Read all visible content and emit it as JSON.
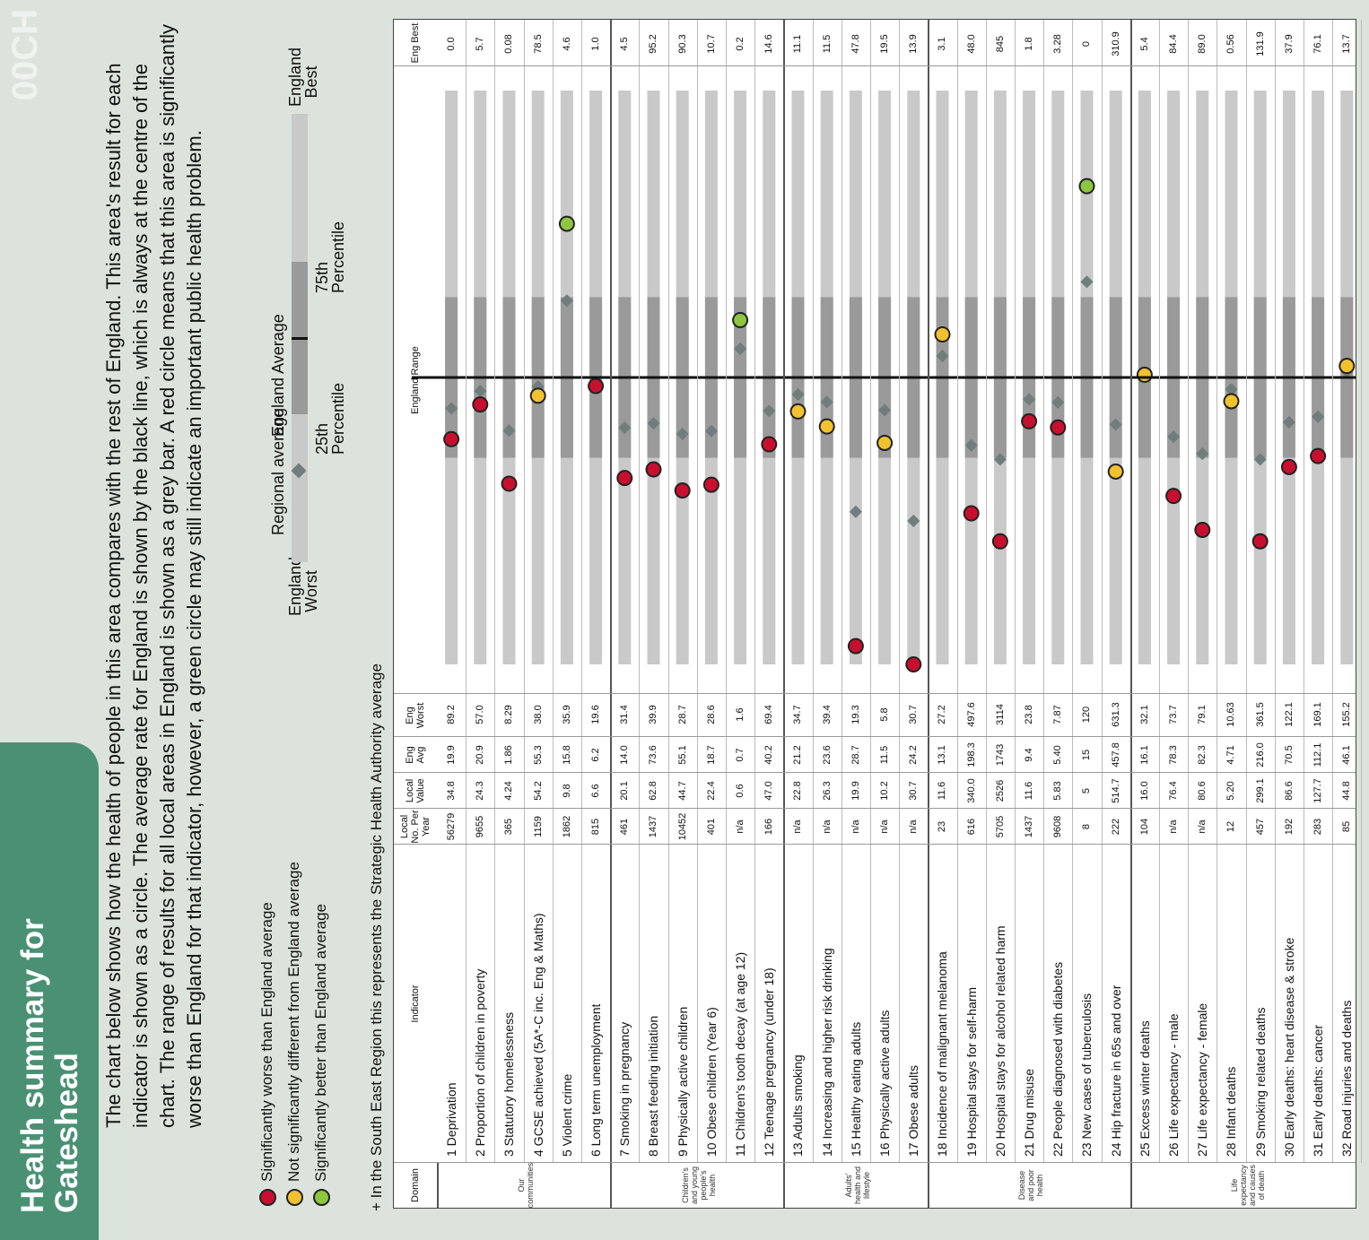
{
  "header": {
    "title_line1": "Health summary for",
    "title_line2": "Gateshead",
    "code": "00CH"
  },
  "intro_text": "The chart below shows how the health of people in this area compares with the rest of England. This area's result for each indicator is shown as a circle. The average rate for England is shown by the black line, which is always at the centre of the chart. The range of results for all local areas in England is shown as a grey bar. A red circle means that this area is significantly worse than England for that indicator, however, a green circle may still indicate an important public health problem.",
  "legend": {
    "items": [
      {
        "label": "Significantly worse than England average",
        "color": "#c8102e"
      },
      {
        "label": "Not significantly different from England average",
        "color": "#f2c12e"
      },
      {
        "label": "Significantly better than England average",
        "color": "#8dc63f"
      }
    ]
  },
  "key": {
    "england_worst": "England Worst",
    "regional_average": "Regional average",
    "percentile_25": "25th Percentile",
    "england_average": "England Average",
    "percentile_75": "75th Percentile",
    "england_best": "England Best"
  },
  "footnote": "+ In the South East Region this represents the Strategic Health Authority average",
  "columns": {
    "domain": "Domain",
    "indicator": "Indicator",
    "local_no": "Local No. Per Year",
    "local_value": "Local Value",
    "eng_avg": "Eng Avg",
    "eng_worst": "Eng Worst",
    "range": "England Range",
    "eng_best": "Eng Best"
  },
  "domains": [
    {
      "label": "Our communities",
      "rows": 6
    },
    {
      "label": "Children's and young people's health",
      "rows": 6
    },
    {
      "label": "Adults' health and lifestyle",
      "rows": 5
    },
    {
      "label": "Disease and poor health",
      "rows": 7
    },
    {
      "label": "Life expectancy and causes of death",
      "rows": 8
    }
  ],
  "chart_data": {
    "type": "table",
    "rows": [
      {
        "n": "1",
        "indicator": "Deprivation",
        "local_no": "56279",
        "local_value": "34.8",
        "eng_avg": "19.9",
        "eng_worst": "89.2",
        "eng_best": "0.0",
        "status": "worse"
      },
      {
        "n": "2",
        "indicator": "Proportion of children in poverty",
        "local_no": "9655",
        "local_value": "24.3",
        "eng_avg": "20.9",
        "eng_worst": "57.0",
        "eng_best": "5.7",
        "status": "worse"
      },
      {
        "n": "3",
        "indicator": "Statutory homelessness",
        "local_no": "365",
        "local_value": "4.24",
        "eng_avg": "1.86",
        "eng_worst": "8.29",
        "eng_best": "0.08",
        "status": "worse"
      },
      {
        "n": "4",
        "indicator": "GCSE achieved (5A*-C inc. Eng & Maths)",
        "local_no": "1159",
        "local_value": "54.2",
        "eng_avg": "55.3",
        "eng_worst": "38.0",
        "eng_best": "78.5",
        "status": "similar"
      },
      {
        "n": "5",
        "indicator": "Violent crime",
        "local_no": "1862",
        "local_value": "9.8",
        "eng_avg": "15.8",
        "eng_worst": "35.9",
        "eng_best": "4.6",
        "status": "better"
      },
      {
        "n": "6",
        "indicator": "Long term unemployment",
        "local_no": "815",
        "local_value": "6.6",
        "eng_avg": "6.2",
        "eng_worst": "19.6",
        "eng_best": "1.0",
        "status": "worse"
      },
      {
        "n": "7",
        "indicator": "Smoking in pregnancy",
        "local_no": "461",
        "local_value": "20.1",
        "eng_avg": "14.0",
        "eng_worst": "31.4",
        "eng_best": "4.5",
        "status": "worse"
      },
      {
        "n": "8",
        "indicator": "Breast feeding initiation",
        "local_no": "1437",
        "local_value": "62.8",
        "eng_avg": "73.6",
        "eng_worst": "39.9",
        "eng_best": "95.2",
        "status": "worse"
      },
      {
        "n": "9",
        "indicator": "Physically active children",
        "local_no": "10452",
        "local_value": "44.7",
        "eng_avg": "55.1",
        "eng_worst": "28.7",
        "eng_best": "90.3",
        "status": "worse"
      },
      {
        "n": "10",
        "indicator": "Obese children (Year 6)",
        "local_no": "401",
        "local_value": "22.4",
        "eng_avg": "18.7",
        "eng_worst": "28.6",
        "eng_best": "10.7",
        "status": "worse"
      },
      {
        "n": "11",
        "indicator": "Children's tooth decay (at age 12)",
        "local_no": "n/a",
        "local_value": "0.6",
        "eng_avg": "0.7",
        "eng_worst": "1.6",
        "eng_best": "0.2",
        "status": "better"
      },
      {
        "n": "12",
        "indicator": "Teenage pregnancy (under 18)",
        "local_no": "166",
        "local_value": "47.0",
        "eng_avg": "40.2",
        "eng_worst": "69.4",
        "eng_best": "14.6",
        "status": "worse"
      },
      {
        "n": "13",
        "indicator": "Adults smoking",
        "local_no": "n/a",
        "local_value": "22.8",
        "eng_avg": "21.2",
        "eng_worst": "34.7",
        "eng_best": "11.1",
        "status": "similar"
      },
      {
        "n": "14",
        "indicator": "Increasing and higher risk drinking",
        "local_no": "n/a",
        "local_value": "26.3",
        "eng_avg": "23.6",
        "eng_worst": "39.4",
        "eng_best": "11.5",
        "status": "similar"
      },
      {
        "n": "15",
        "indicator": "Healthy eating adults",
        "local_no": "n/a",
        "local_value": "19.9",
        "eng_avg": "28.7",
        "eng_worst": "19.3",
        "eng_best": "47.8",
        "status": "worse"
      },
      {
        "n": "16",
        "indicator": "Physically active adults",
        "local_no": "n/a",
        "local_value": "10.2",
        "eng_avg": "11.5",
        "eng_worst": "5.8",
        "eng_best": "19.5",
        "status": "similar"
      },
      {
        "n": "17",
        "indicator": "Obese adults",
        "local_no": "n/a",
        "local_value": "30.7",
        "eng_avg": "24.2",
        "eng_worst": "30.7",
        "eng_best": "13.9",
        "status": "worse"
      },
      {
        "n": "18",
        "indicator": "Incidence of malignant melanoma",
        "local_no": "23",
        "local_value": "11.6",
        "eng_avg": "13.1",
        "eng_worst": "27.2",
        "eng_best": "3.1",
        "status": "similar"
      },
      {
        "n": "19",
        "indicator": "Hospital stays for self-harm",
        "local_no": "616",
        "local_value": "340.0",
        "eng_avg": "198.3",
        "eng_worst": "497.6",
        "eng_best": "48.0",
        "status": "worse"
      },
      {
        "n": "20",
        "indicator": "Hospital stays for alcohol related harm",
        "local_no": "5705",
        "local_value": "2526",
        "eng_avg": "1743",
        "eng_worst": "3114",
        "eng_best": "845",
        "status": "worse"
      },
      {
        "n": "21",
        "indicator": "Drug misuse",
        "local_no": "1437",
        "local_value": "11.6",
        "eng_avg": "9.4",
        "eng_worst": "23.8",
        "eng_best": "1.8",
        "status": "worse"
      },
      {
        "n": "22",
        "indicator": "People diagnosed with diabetes",
        "local_no": "9608",
        "local_value": "5.83",
        "eng_avg": "5.40",
        "eng_worst": "7.87",
        "eng_best": "3.28",
        "status": "worse"
      },
      {
        "n": "23",
        "indicator": "New cases of tuberculosis",
        "local_no": "8",
        "local_value": "5",
        "eng_avg": "15",
        "eng_worst": "120",
        "eng_best": "0",
        "status": "better"
      },
      {
        "n": "24",
        "indicator": "Hip fracture in 65s and over",
        "local_no": "222",
        "local_value": "514.7",
        "eng_avg": "457.8",
        "eng_worst": "631.3",
        "eng_best": "310.9",
        "status": "similar"
      },
      {
        "n": "25",
        "indicator": "Excess winter deaths",
        "local_no": "104",
        "local_value": "16.0",
        "eng_avg": "16.1",
        "eng_worst": "32.1",
        "eng_best": "5.4",
        "status": "similar"
      },
      {
        "n": "26",
        "indicator": "Life expectancy - male",
        "local_no": "n/a",
        "local_value": "76.4",
        "eng_avg": "78.3",
        "eng_worst": "73.7",
        "eng_best": "84.4",
        "status": "worse"
      },
      {
        "n": "27",
        "indicator": "Life expectancy - female",
        "local_no": "n/a",
        "local_value": "80.6",
        "eng_avg": "82.3",
        "eng_worst": "79.1",
        "eng_best": "89.0",
        "status": "worse"
      },
      {
        "n": "28",
        "indicator": "Infant deaths",
        "local_no": "12",
        "local_value": "5.20",
        "eng_avg": "4.71",
        "eng_worst": "10.63",
        "eng_best": "0.56",
        "status": "similar"
      },
      {
        "n": "29",
        "indicator": "Smoking related deaths",
        "local_no": "457",
        "local_value": "299.1",
        "eng_avg": "216.0",
        "eng_worst": "361.5",
        "eng_best": "131.9",
        "status": "worse"
      },
      {
        "n": "30",
        "indicator": "Early deaths: heart disease & stroke",
        "local_no": "192",
        "local_value": "86.6",
        "eng_avg": "70.5",
        "eng_worst": "122.1",
        "eng_best": "37.9",
        "status": "worse"
      },
      {
        "n": "31",
        "indicator": "Early deaths: cancer",
        "local_no": "283",
        "local_value": "127.7",
        "eng_avg": "112.1",
        "eng_worst": "169.1",
        "eng_best": "76.1",
        "status": "worse"
      },
      {
        "n": "32",
        "indicator": "Road injuries and deaths",
        "local_no": "85",
        "local_value": "44.8",
        "eng_avg": "46.1",
        "eng_worst": "155.2",
        "eng_best": "13.7",
        "status": "similar"
      }
    ]
  },
  "colors": {
    "worse": "#c8102e",
    "similar": "#f2c12e",
    "better": "#8dc63f",
    "range_light": "#c9c9c9",
    "range_dark": "#9a9a9a",
    "regional": "#6f7d7d",
    "header_green": "#4a9174"
  }
}
